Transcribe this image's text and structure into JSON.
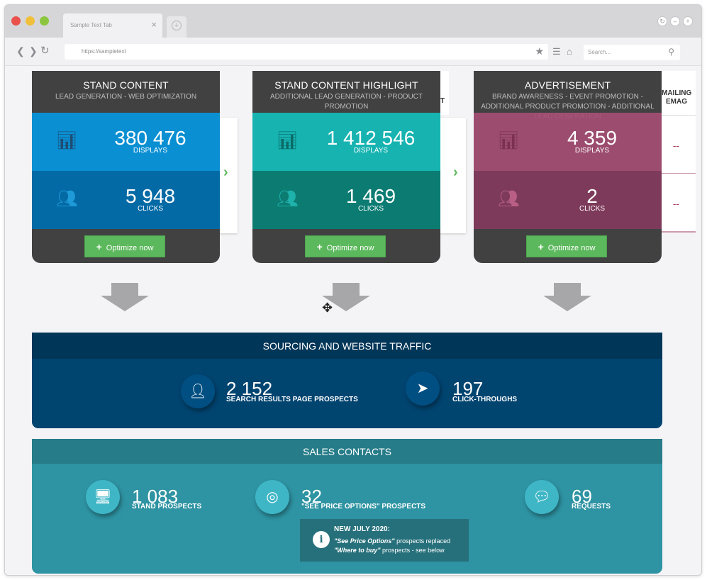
{
  "browser": {
    "tab_title": "Sample Text Tab",
    "url": "https://sampletext",
    "search_placeholder": "Search...",
    "colors": {
      "close": "#e9524a",
      "minimize": "#f0c03a",
      "maximize": "#5cb85c"
    }
  },
  "cards": [
    {
      "title": "STAND CONTENT",
      "subtitle": "LEAD GENERATION - WEB OPTIMIZATION",
      "displays_value": "380 476",
      "displays_label": "DISPLAYS",
      "clicks_value": "5 948",
      "clicks_label": "CLICKS",
      "button_label": "Optimize now",
      "colors": {
        "top": "#0a8fd2",
        "bottom": "#046aa5",
        "icon": "#1e4c74"
      }
    },
    {
      "title": "STAND CONTENT HIGHLIGHT",
      "subtitle": "ADDITIONAL LEAD GENERATION - PRODUCT PROMOTION",
      "displays_value": "1 412 546",
      "displays_label": "DISPLAYS",
      "clicks_value": "1 469",
      "clicks_label": "CLICKS",
      "button_label": "Optimize now",
      "colors": {
        "top": "#16b3b1",
        "bottom": "#0c7c73",
        "icon": "#0b6a66"
      }
    },
    {
      "title": "ADVERTISEMENT",
      "subtitle": "BRAND AWARENESS - EVENT PROMOTION - ADDITIONAL PRODUCT PROMOTION - ADDITIONAL LEAD GENERATION",
      "displays_value": "4 359",
      "displays_label": "DISPLAYS",
      "clicks_value": "2",
      "clicks_label": "CLICKS",
      "button_label": "Optimize now",
      "colors": {
        "top": "#a44e73",
        "bottom": "#7e3a5a",
        "icon": "#7a3050"
      }
    }
  ],
  "partial": {
    "card2_edge": "T",
    "card3_edge_line1": "MAILING",
    "card3_edge_line2": "EMAG",
    "dash1": "--",
    "dash2": "--"
  },
  "sourcing": {
    "title": "SOURCING AND WEBSITE TRAFFIC",
    "stats": [
      {
        "value": "2 152",
        "label": "SEARCH RESULTS PAGE PROSPECTS"
      },
      {
        "value": "197",
        "label": "CLICK-THROUGHS"
      }
    ]
  },
  "sales": {
    "title": "SALES CONTACTS",
    "stats": [
      {
        "value": "1 083",
        "label": "STAND PROSPECTS"
      },
      {
        "value": "32",
        "label": "\"SEE PRICE OPTIONS\" PROSPECTS"
      },
      {
        "value": "69",
        "label": "REQUESTS"
      }
    ],
    "note": {
      "title": "NEW JULY 2020:",
      "line1_em": "\"See Price Options\"",
      "line1_rest": " prospects replaced",
      "line2_em": "\"Where to buy\"",
      "line2_rest": " prospects - see below"
    }
  }
}
